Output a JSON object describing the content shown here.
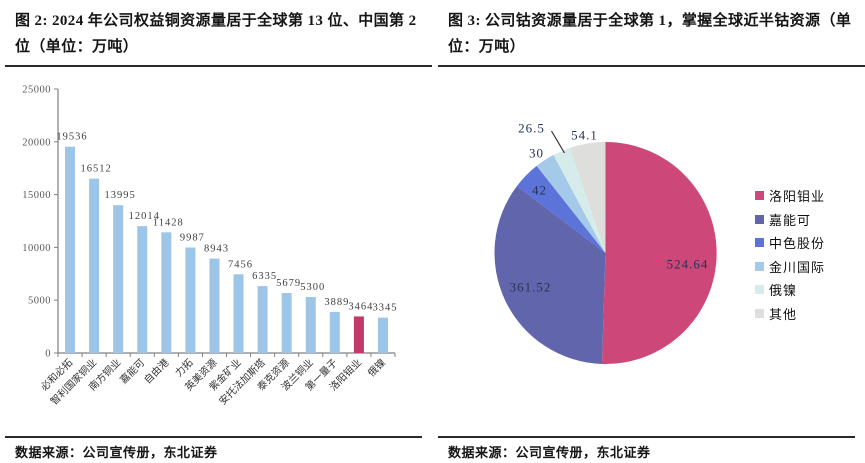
{
  "panels": {
    "left": {
      "title": "图 2: 2024 年公司权益铜资源量居于全球第 13 位、中国第 2 位（单位：万吨）",
      "source": "数据来源：公司宣传册，东北证券"
    },
    "right": {
      "title": "图 3: 公司钴资源量居于全球第 1，掌握全球近半钴资源（单位：万吨）",
      "source": "数据来源：公司宣传册，东北证券"
    }
  },
  "chart_data": [
    {
      "type": "bar",
      "title": "2024 年公司权益铜资源量居于全球第 13 位、中国第 2 位",
      "unit": "万吨",
      "categories": [
        "必和必拓",
        "智利国家铜业",
        "南方铜业",
        "嘉能可",
        "自由港",
        "力拓",
        "英美资源",
        "紫金矿业",
        "安托法加斯塔",
        "泰克资源",
        "波兰铜业",
        "第一量子",
        "洛阳钼业",
        "俄镍"
      ],
      "values": [
        19536,
        16512,
        13995,
        12014,
        11428,
        9987,
        8943,
        7456,
        6335,
        5679,
        5300,
        3889,
        3464,
        3345
      ],
      "ylim": [
        0,
        25000
      ],
      "yticks": [
        0,
        5000,
        10000,
        15000,
        20000,
        25000
      ],
      "grid": false,
      "legend": "none",
      "bar_color": "#9DC5E8",
      "highlight": {
        "index": 12,
        "category": "洛阳钼业",
        "color": "#C23A69"
      },
      "axis_color": "#808080"
    },
    {
      "type": "pie",
      "title": "公司钴资源量居于全球第 1，掌握全球近半钴资源",
      "unit": "万吨",
      "start_angle_deg": 0,
      "direction": "clockwise",
      "legend_position": "right",
      "slices": [
        {
          "label": "洛阳钼业",
          "value": 524.64,
          "display": "524.64",
          "color": "#CE4779",
          "label_pos": [
            82,
            11
          ]
        },
        {
          "label": "嘉能可",
          "value": 361.52,
          "display": "361.52",
          "color": "#6166AC",
          "label_pos": [
            -75,
            34
          ]
        },
        {
          "label": "中色股份",
          "value": 42,
          "display": "42",
          "color": "#5C74D9",
          "label_pos": [
            -66,
            -63
          ]
        },
        {
          "label": "金川国际",
          "value": 30,
          "display": "30",
          "color": "#A5C9E9",
          "label_pos": [
            -69,
            -100
          ]
        },
        {
          "label": "俄镍",
          "value": 26.5,
          "display": "26.5",
          "color": "#D5ECEA",
          "label_pos": [
            -74,
            -125
          ],
          "leader": [
            [
              -54,
              -122
            ],
            [
              -41,
              -100
            ]
          ]
        },
        {
          "label": "其他",
          "value": 54.1,
          "display": "54.1",
          "color": "#DEDEDC",
          "label_pos": [
            -21,
            -118
          ]
        }
      ]
    }
  ]
}
